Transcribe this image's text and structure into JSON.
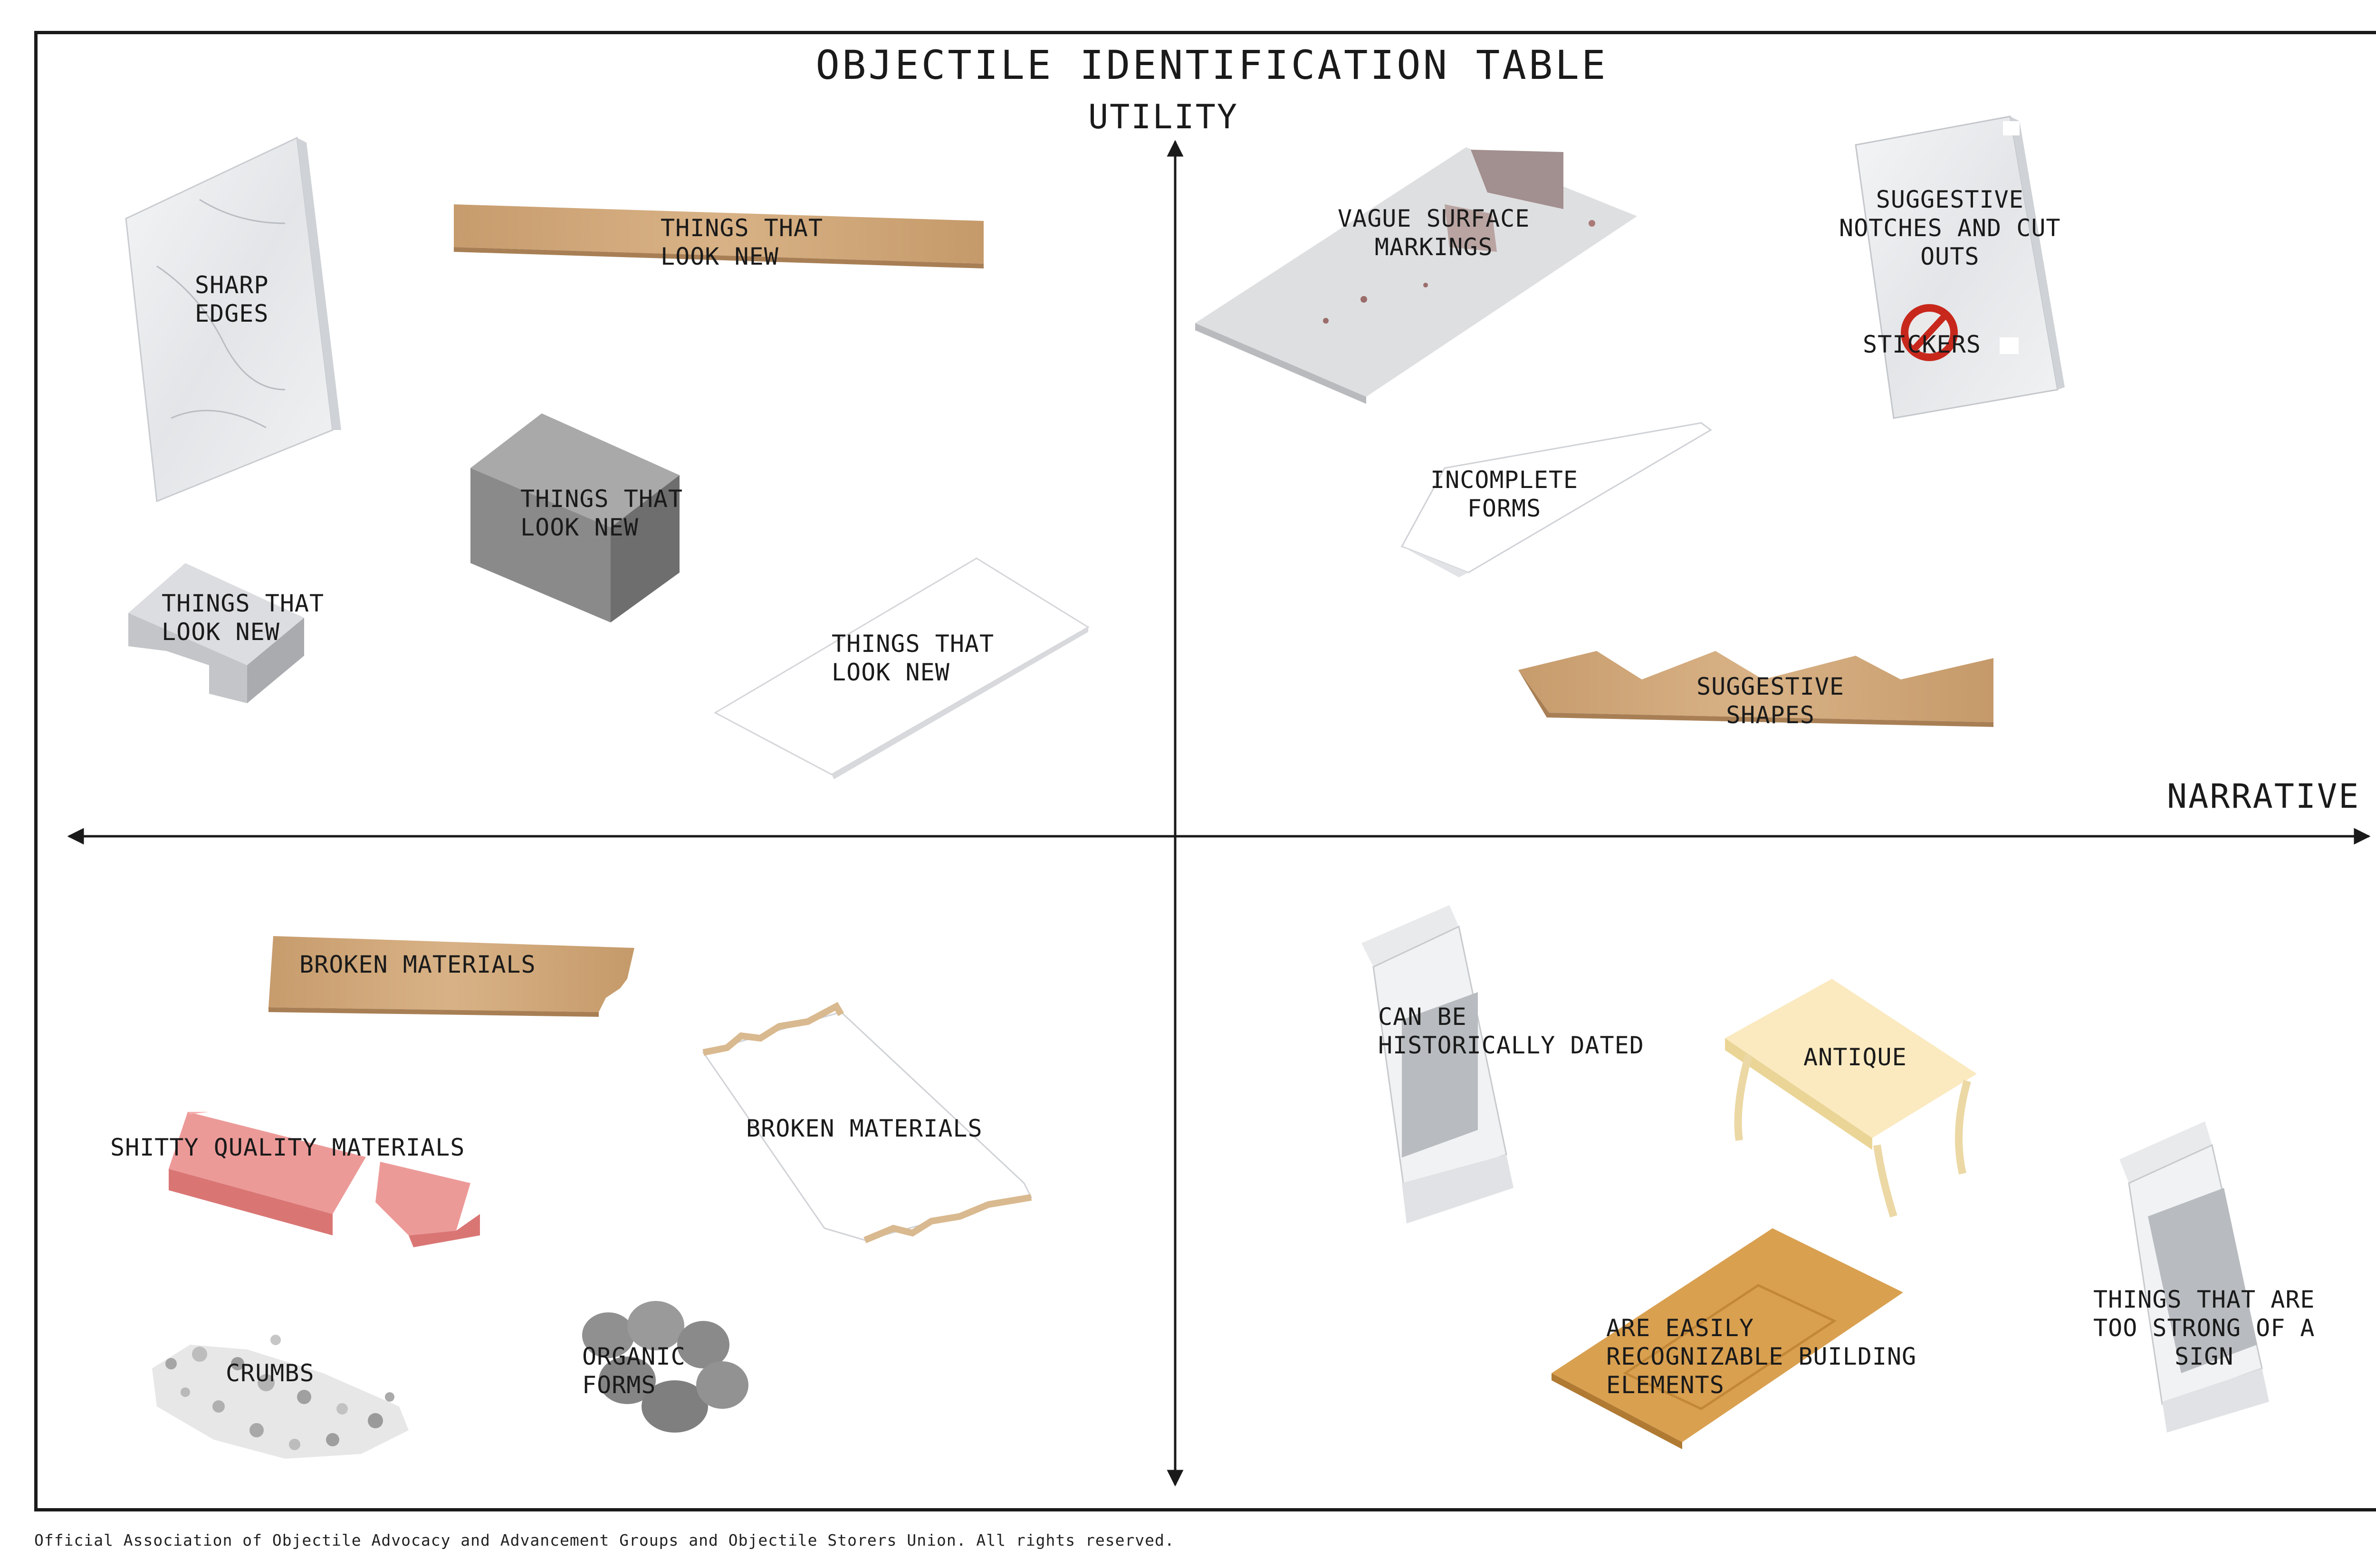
{
  "title": "OBJECTILE IDENTIFICATION TABLE",
  "axes": {
    "vertical_label": "UTILITY",
    "horizontal_label": "NARRATIVE"
  },
  "quadrants": {
    "top_left": {
      "sharp_edges": "SHARP\nEDGES",
      "plank_look_new": "THINGS THAT\nLOOK NEW",
      "concrete_block_look_new": "THINGS THAT\nLOOK NEW",
      "paver_look_new": "THINGS THAT\nLOOK NEW",
      "white_slab_look_new": "THINGS THAT\nLOOK NEW"
    },
    "top_right": {
      "vague_surface_markings": "VAGUE SURFACE\nMARKINGS",
      "suggestive_notches": "SUGGESTIVE\nNOTCHES AND CUT\nOUTS",
      "stickers": "STICKERS",
      "incomplete_forms": "INCOMPLETE\nFORMS",
      "suggestive_shapes": "SUGGESTIVE\nSHAPES"
    },
    "bottom_left": {
      "broken_plank": "BROKEN MATERIALS",
      "shitty_quality": "SHITTY QUALITY MATERIALS",
      "broken_panel": "BROKEN MATERIALS",
      "crumbs": "CRUMBS",
      "organic_forms": "ORGANIC\nFORMS"
    },
    "bottom_right": {
      "historically_dated": "CAN BE\nHISTORICALLY DATED",
      "antique": "ANTIQUE",
      "building_elements": "ARE EASILY\nRECOGNIZABLE BUILDING\nELEMENTS",
      "too_strong_sign": "THINGS THAT ARE\nTOO STRONG OF A\nSIGN"
    }
  },
  "colors": {
    "ink": "#1a1a1a",
    "wood": "#c9a277",
    "marble": "#eceef0",
    "concrete": "#8f8f8f",
    "brick": "#e58a88",
    "sticker_red": "#c8281c"
  },
  "footer": "Official Association of Objectile Advocacy and Advancement Groups and Objectile Storers Union. All rights reserved."
}
